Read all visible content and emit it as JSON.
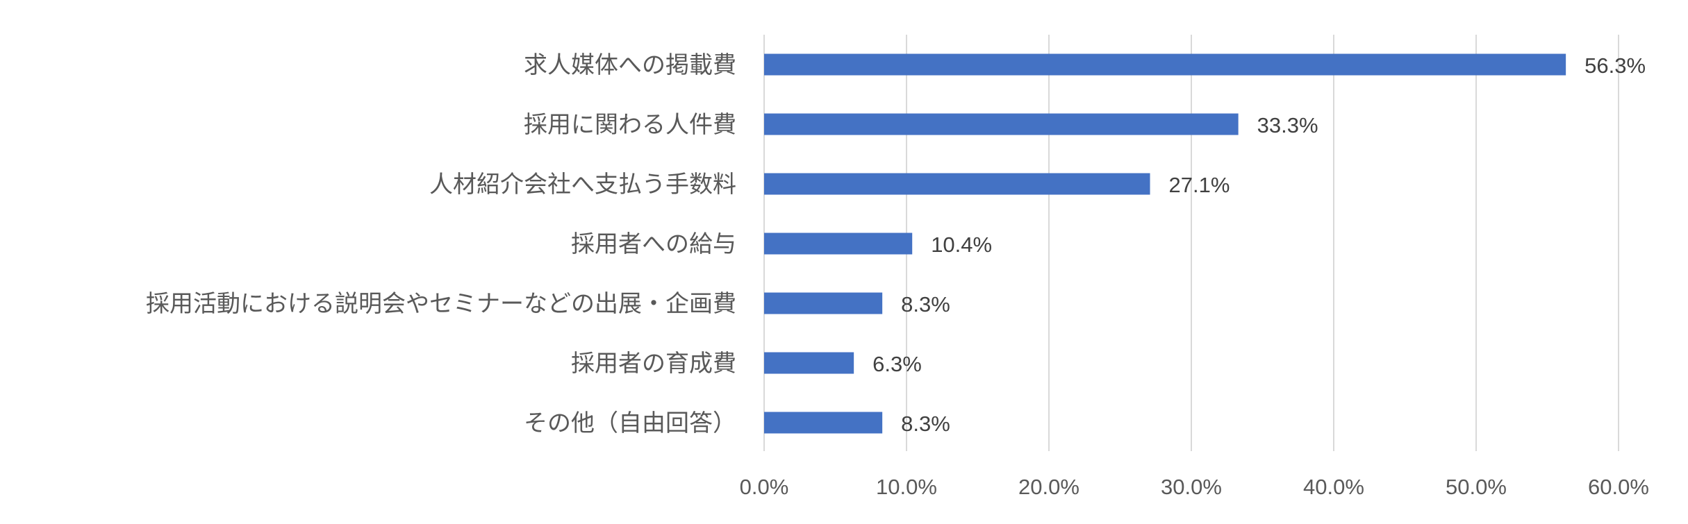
{
  "chart_data": {
    "type": "bar",
    "orientation": "horizontal",
    "title": "",
    "xlabel": "",
    "ylabel": "",
    "categories": [
      "求人媒体への掲載費",
      "採用に関わる人件費",
      "人材紹介会社へ支払う手数料",
      "採用者への給与",
      "採用活動における説明会やセミナーなどの出展・企画費",
      "採用者の育成費",
      "その他（自由回答）"
    ],
    "values": [
      56.3,
      33.3,
      27.1,
      10.4,
      8.3,
      6.3,
      8.3
    ],
    "data_labels": [
      "56.3%",
      "33.3%",
      "27.1%",
      "10.4%",
      "8.3%",
      "6.3%",
      "8.3%"
    ],
    "xlim": [
      0,
      60
    ],
    "xticks": [
      0,
      10,
      20,
      30,
      40,
      50,
      60
    ],
    "xtick_labels": [
      "0.0%",
      "10.0%",
      "20.0%",
      "30.0%",
      "40.0%",
      "50.0%",
      "60.0%"
    ],
    "grid": "vertical",
    "legend": "none",
    "colors": {
      "bar": "#4472C4",
      "grid": "#D9D9D9"
    }
  }
}
